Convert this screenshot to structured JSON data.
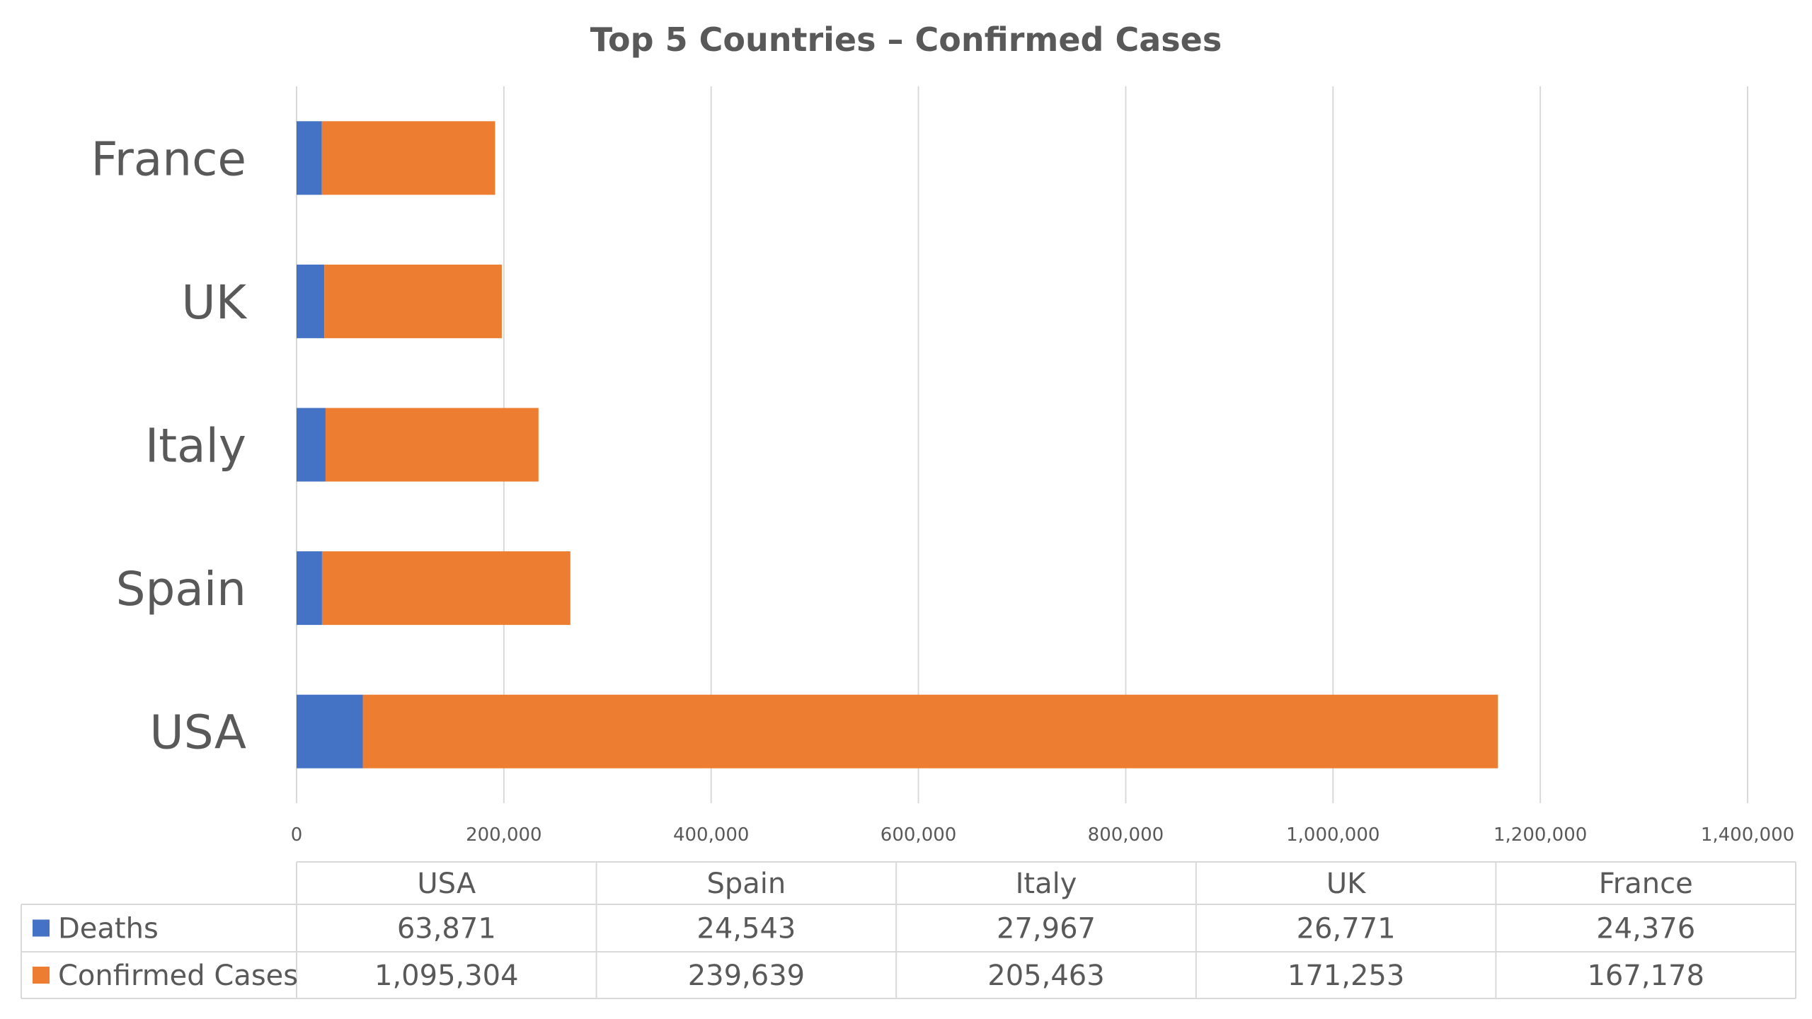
{
  "chart_data": {
    "type": "bar",
    "orientation": "horizontal",
    "stacked": true,
    "title": "Top 5 Countries – Confirmed Cases",
    "categories": [
      "USA",
      "Spain",
      "Italy",
      "UK",
      "France"
    ],
    "series": [
      {
        "name": "Deaths",
        "color": "#4472c4",
        "values": [
          63871,
          24543,
          27967,
          26771,
          24376
        ],
        "labels": [
          "63,871",
          "24,543",
          "27,967",
          "26,771",
          "24,376"
        ]
      },
      {
        "name": "Confirmed Cases",
        "color": "#ed7d31",
        "values": [
          1095304,
          239639,
          205463,
          171253,
          167178
        ],
        "labels": [
          "1,095,304",
          "239,639",
          "205,463",
          "171,253",
          "167,178"
        ]
      }
    ],
    "xlim": [
      0,
      1400000
    ],
    "xticks": [
      0,
      200000,
      400000,
      600000,
      800000,
      1000000,
      1200000,
      1400000
    ],
    "xtick_labels": [
      "0",
      "200,000",
      "400,000",
      "600,000",
      "800,000",
      "1,000,000",
      "1,200,000",
      "1,400,000"
    ],
    "grid": true,
    "legend": "data-table"
  }
}
